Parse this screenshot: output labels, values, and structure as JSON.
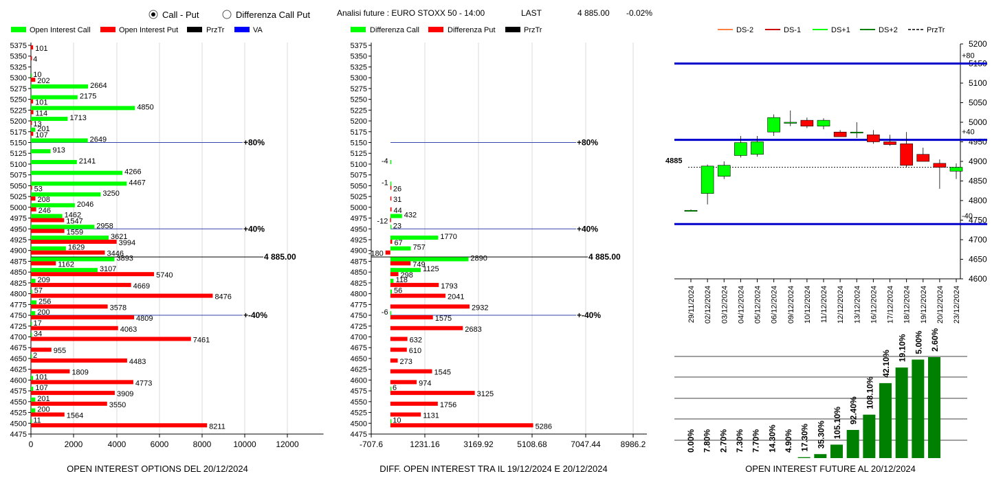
{
  "header": {
    "radio_call_put": "Call - Put",
    "radio_diff": "Differenza Call Put",
    "selected": "call_put",
    "future_title": "Analisi future : EURO STOXX 50 - 14:00",
    "last_label": "LAST",
    "last_value": "4 885.00",
    "last_change": "-0.02%"
  },
  "colors": {
    "green": "#00ff00",
    "red": "#ff0000",
    "black": "#000000",
    "blue": "#0000ff",
    "dark_green": "#008000"
  },
  "legend_left": [
    "Open Interest Call",
    "Open Interest Put",
    "PrzTr",
    "VA"
  ],
  "legend_mid": [
    "Differenza Call",
    "Differenza Put",
    "PrzTr"
  ],
  "legend_right": [
    "DS-2",
    "DS-1",
    "DS+1",
    "DS+2",
    "PrzTr"
  ],
  "chart_data": [
    {
      "type": "bar",
      "title": "OPEN INTEREST OPTIONS DEL 20/12/2024",
      "strikes": [
        5375,
        5350,
        5325,
        5300,
        5275,
        5250,
        5225,
        5200,
        5175,
        5150,
        5125,
        5100,
        5075,
        5050,
        5025,
        5000,
        4975,
        4950,
        4925,
        4900,
        4875,
        4850,
        4825,
        4800,
        4775,
        4750,
        4725,
        4700,
        4675,
        4650,
        4625,
        4600,
        4575,
        4550,
        4525,
        4500,
        4475
      ],
      "series": [
        {
          "name": "Open Interest Call",
          "values": [
            null,
            null,
            null,
            10,
            2664,
            2175,
            4850,
            1713,
            201,
            2649,
            913,
            2141,
            4266,
            4467,
            3250,
            2046,
            1462,
            2958,
            3621,
            1629,
            3893,
            3107,
            209,
            57,
            256,
            200,
            17,
            34,
            null,
            2,
            null,
            101,
            107,
            201,
            200,
            11,
            null
          ]
        },
        {
          "name": "Open Interest Put",
          "values": [
            101,
            4,
            null,
            202,
            null,
            101,
            114,
            13,
            107,
            null,
            null,
            null,
            null,
            53,
            208,
            246,
            1547,
            1559,
            3994,
            3446,
            1162,
            5740,
            4669,
            8476,
            3578,
            4809,
            4063,
            7461,
            955,
            4483,
            1809,
            4773,
            3909,
            3550,
            1564,
            8211,
            null
          ]
        }
      ],
      "xticks": [
        "0",
        "2000",
        "4000",
        "6000",
        "8000",
        "10000",
        "12000"
      ],
      "xlim": [
        0,
        13000
      ],
      "markers": [
        {
          "label": "80%",
          "strike": 5150
        },
        {
          "label": "40%",
          "strike": 4950
        },
        {
          "label": "4 885.00",
          "strike": 4885
        },
        {
          "label": "-40%",
          "strike": 4750
        }
      ]
    },
    {
      "type": "bar",
      "title": "DIFF. OPEN INTEREST TRA IL 19/12/2024 E 20/12/2024",
      "strikes": [
        5375,
        5350,
        5325,
        5300,
        5275,
        5250,
        5225,
        5200,
        5175,
        5150,
        5125,
        5100,
        5075,
        5050,
        5025,
        5000,
        4975,
        4950,
        4925,
        4900,
        4875,
        4850,
        4825,
        4800,
        4775,
        4750,
        4725,
        4700,
        4675,
        4650,
        4625,
        4600,
        4575,
        4550,
        4525,
        4500,
        4475
      ],
      "series": [
        {
          "name": "Differenza Call",
          "values": [
            null,
            null,
            null,
            null,
            null,
            null,
            null,
            null,
            null,
            null,
            null,
            -4,
            null,
            -1,
            null,
            null,
            432,
            23,
            1770,
            757,
            2890,
            1125,
            118,
            56,
            null,
            -6,
            null,
            null,
            null,
            null,
            null,
            null,
            6,
            null,
            null,
            10,
            null
          ]
        },
        {
          "name": "Differenza Put",
          "values": [
            null,
            null,
            null,
            null,
            null,
            null,
            null,
            null,
            null,
            null,
            null,
            null,
            null,
            26,
            31,
            44,
            -12,
            null,
            67,
            -180,
            749,
            298,
            1793,
            2041,
            2932,
            1575,
            2683,
            632,
            610,
            273,
            1545,
            974,
            3125,
            1756,
            1131,
            5286,
            null
          ]
        }
      ],
      "xticks": [
        "-707.6",
        "1231.16",
        "3169.92",
        "5108.68",
        "7047.44",
        "8986.2"
      ],
      "xlim": [
        -707.6,
        8986.2
      ],
      "markers": [
        {
          "label": "80%",
          "strike": 5150
        },
        {
          "label": "40%",
          "strike": 4950
        },
        {
          "label": "4 885.00",
          "strike": 4885
        },
        {
          "label": "-40%",
          "strike": 4750
        }
      ]
    },
    {
      "type": "candlestick",
      "dates": [
        "29/11/2024",
        "02/12/2024",
        "03/12/2024",
        "04/12/2024",
        "05/12/2024",
        "06/12/2024",
        "09/12/2024",
        "10/12/2024",
        "11/12/2024",
        "12/12/2024",
        "13/12/2024",
        "16/12/2024",
        "17/12/2024",
        "18/12/2024",
        "19/12/2024",
        "20/12/2024",
        "23/12/2024"
      ],
      "ohlc": [
        [
          4775,
          4777,
          4773,
          4775
        ],
        [
          4818,
          4892,
          4790,
          4888
        ],
        [
          4862,
          4900,
          4855,
          4890
        ],
        [
          4915,
          4965,
          4910,
          4948
        ],
        [
          4918,
          4965,
          4912,
          4950
        ],
        [
          4975,
          5020,
          4965,
          5012
        ],
        [
          5000,
          5030,
          4990,
          5000
        ],
        [
          5005,
          5012,
          4985,
          4990
        ],
        [
          4990,
          5010,
          4982,
          5005
        ],
        [
          4975,
          4980,
          4965,
          4963
        ],
        [
          4975,
          5000,
          4960,
          4975
        ],
        [
          4968,
          4980,
          4945,
          4950
        ],
        [
          4950,
          4968,
          4940,
          4943
        ],
        [
          4945,
          4975,
          4885,
          4890
        ],
        [
          4918,
          4935,
          4900,
          4900
        ],
        [
          4895,
          4905,
          4830,
          4885
        ],
        [
          4875,
          4895,
          4855,
          4885
        ]
      ],
      "yticks": [
        "5200",
        "5150",
        "5100",
        "5050",
        "5000",
        "4950",
        "4900",
        "4850",
        "4800",
        "4750",
        "4700",
        "4650",
        "4600"
      ],
      "ylim": [
        4600,
        5200
      ],
      "levels": [
        {
          "label": "+80",
          "value": 5150
        },
        {
          "label": "+40",
          "value": 4955
        },
        {
          "label": "-40",
          "value": 4740
        }
      ],
      "last_label": "4885",
      "last_value": 4885
    },
    {
      "type": "bar",
      "title": "OPEN INTEREST FUTURE AL 20/12/2024",
      "labels": [
        "0.00%",
        "7.80%",
        "2.70%",
        "7.30%",
        "7.70%",
        "14.30%",
        "4.90%",
        "17.30%",
        "35.30%",
        "105.10%",
        "92.40%",
        "108.10%",
        "42.10%",
        "19.10%",
        "5.00%",
        "2.60%"
      ],
      "values": [
        0,
        0,
        0,
        0,
        0,
        0,
        0,
        0.3,
        1.3,
        4.4,
        9.2,
        14.2,
        24.5,
        29.6,
        32.2,
        33.0
      ]
    }
  ]
}
